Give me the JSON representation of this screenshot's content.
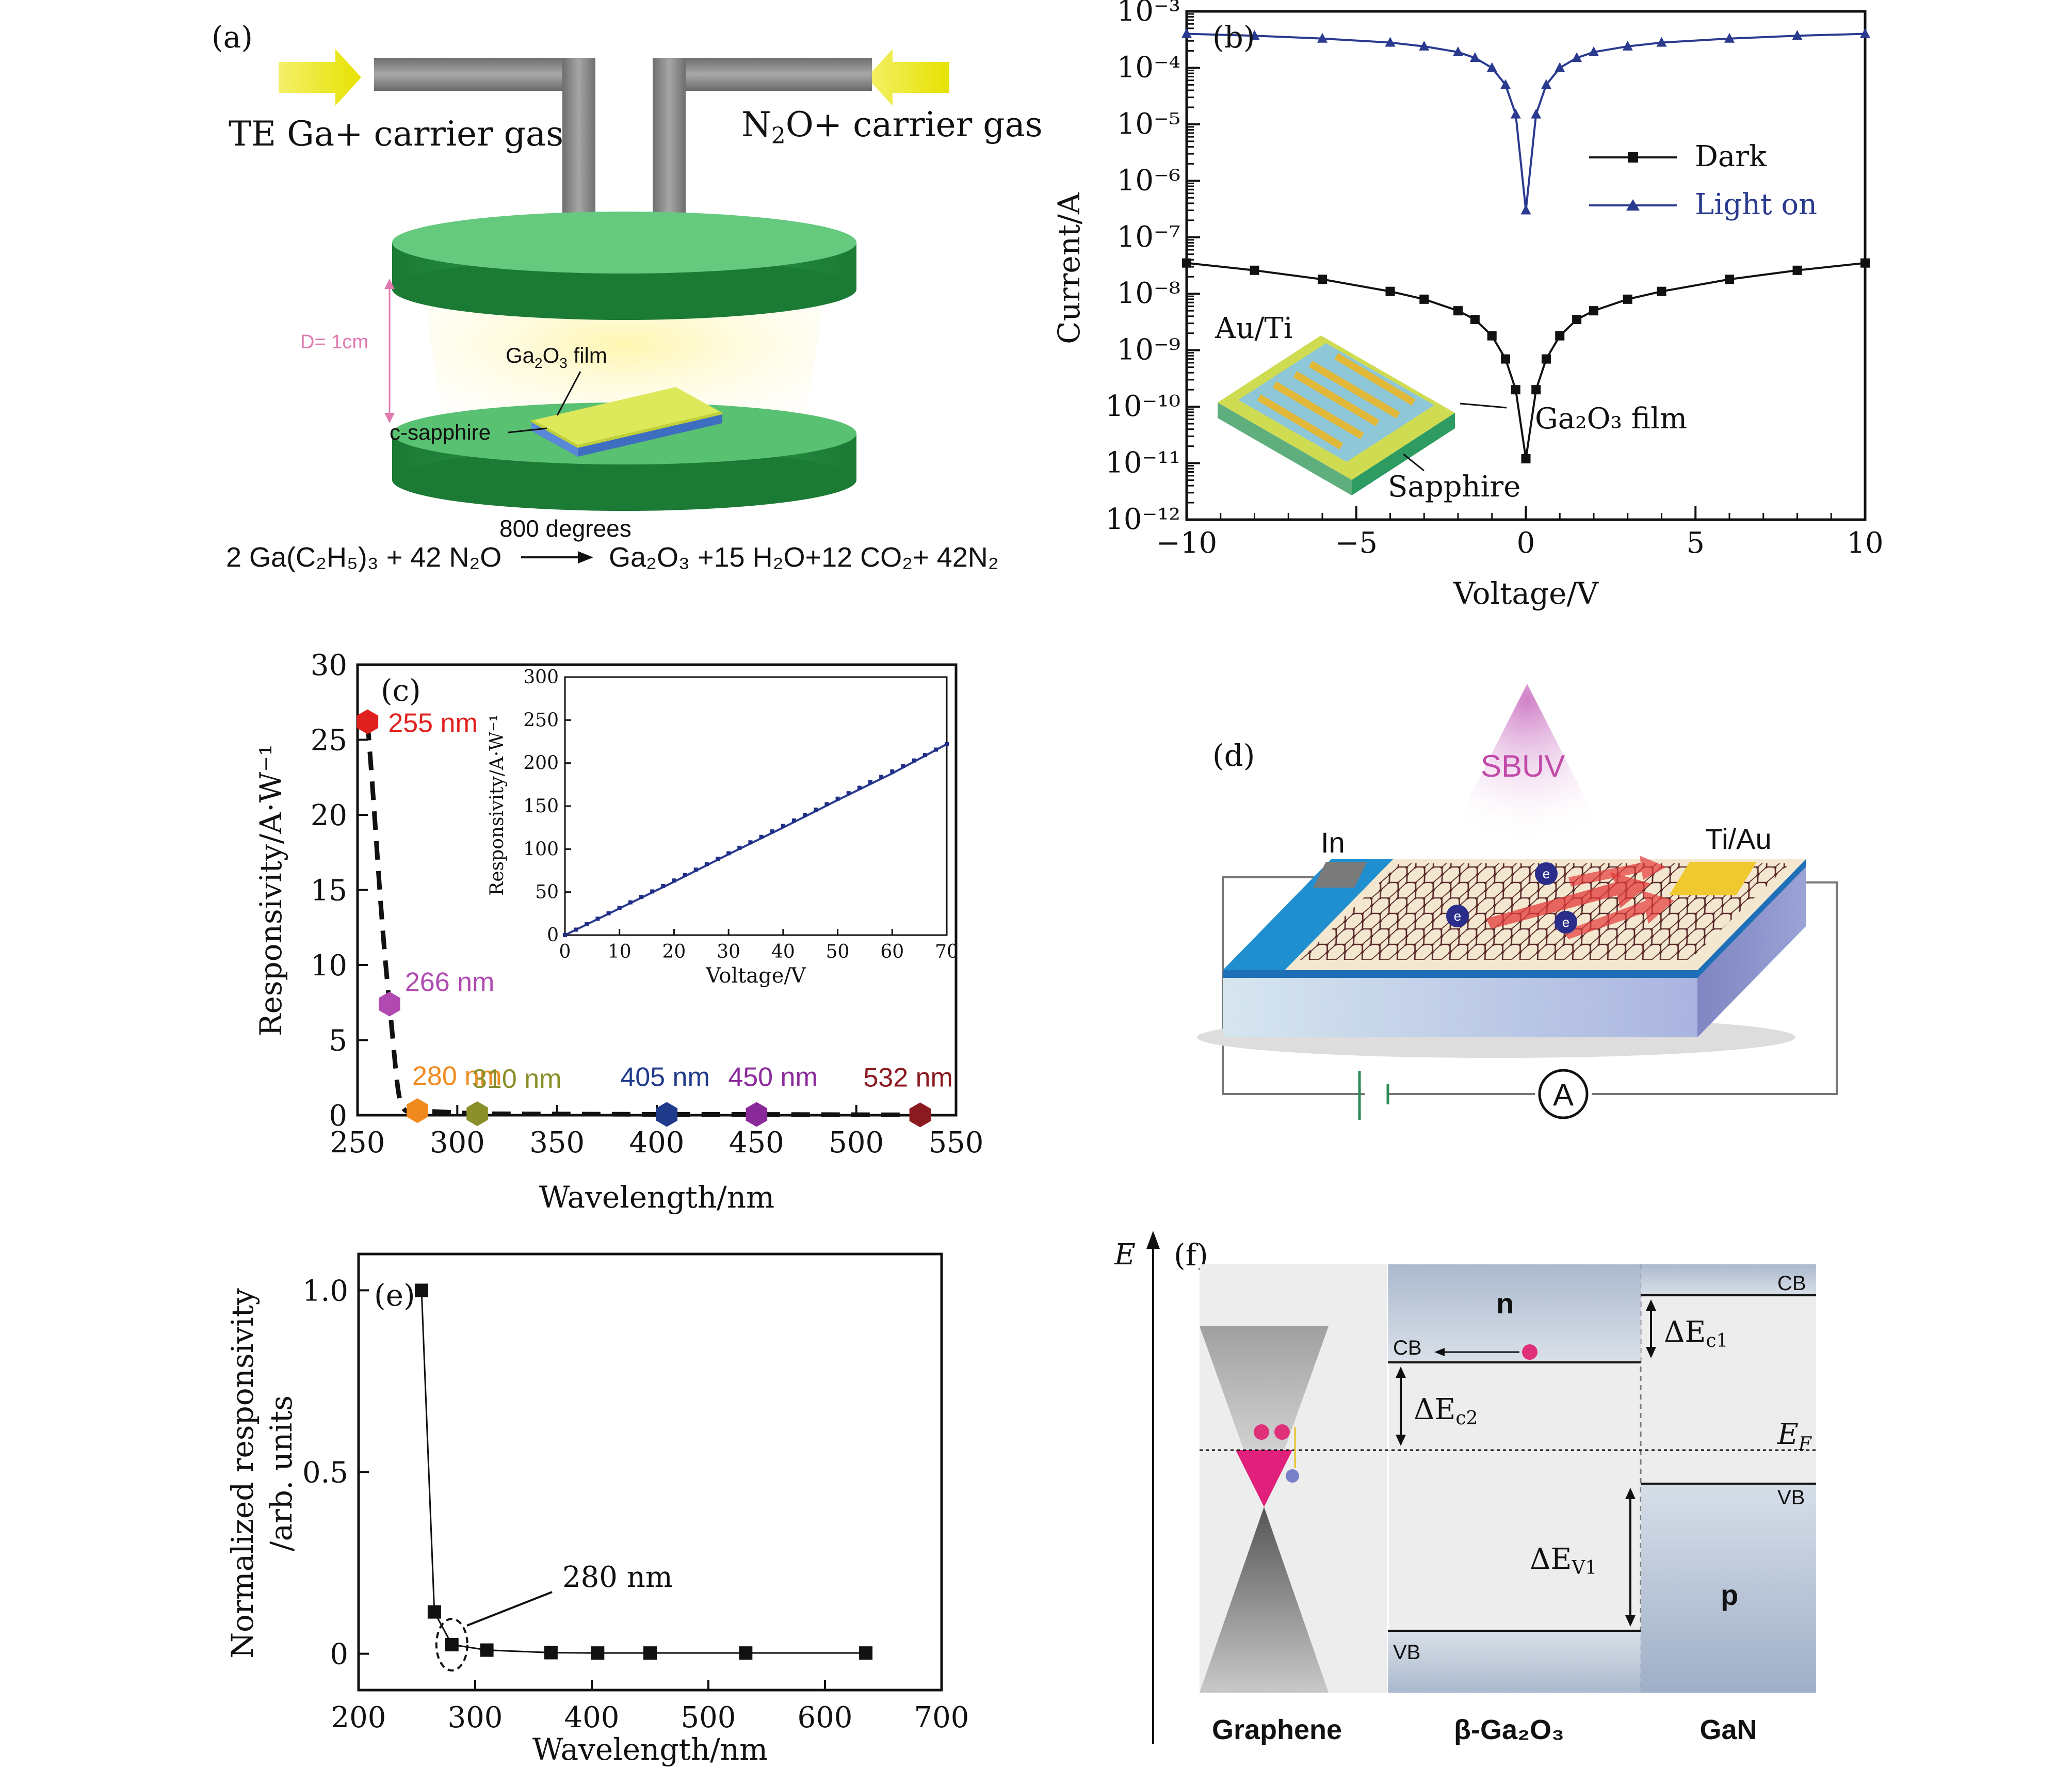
{
  "panels": {
    "a": {
      "label": "(a)",
      "left_gas": "TE Ga+ carrier gas",
      "right_gas_base": "N",
      "right_gas_sub": "2",
      "right_gas_rest": "O+ carrier gas",
      "distance": "D= 1cm",
      "film_label_base": "Ga",
      "film_label_sub1": "2",
      "film_label_mid": "O",
      "film_label_sub2": "3",
      "film_label_rest": " film",
      "substrate_label": "c-sapphire",
      "condition": "800 degrees",
      "reaction_left": "2 Ga(C₂H₅)₃ + 42 N₂O",
      "reaction_right": "Ga₂O₃ +15 H₂O+12 CO₂+ 42N₂"
    },
    "b": {
      "label": "(b)",
      "inset_top": "Au/Ti",
      "inset_film": "Ga₂O₃ film",
      "inset_substrate": "Sapphire"
    },
    "c": {
      "label": "(c)"
    },
    "d": {
      "label": "(d)",
      "light": "SBUV",
      "left_contact": "In",
      "right_contact": "Ti/Au",
      "meter": "A",
      "electron": "e"
    },
    "e": {
      "label": "(e)",
      "annotation": "280 nm"
    },
    "f": {
      "label": "(f)",
      "axis": "E",
      "fermi": "E",
      "fermi_sub": "F",
      "region_n": "n",
      "region_p": "p",
      "cb_left": "CB",
      "cb_right": "CB",
      "vb_left": "VB",
      "vb_right": "VB",
      "dEc1": "ΔE",
      "dEc1_sub": "c1",
      "dEc2": "ΔE",
      "dEc2_sub": "c2",
      "dEv1": "ΔE",
      "dEv1_sub": "V1",
      "materials": [
        "Graphene",
        "β-Ga₂O₃",
        "GaN"
      ]
    }
  },
  "chart_data": [
    {
      "id": "b",
      "type": "line",
      "xlabel": "Voltage/V",
      "ylabel": "Current/A",
      "xlim": [
        -10,
        10
      ],
      "ylim": [
        1e-12,
        0.001
      ],
      "yscale": "log",
      "xticks": [
        "−10",
        "−5",
        "0",
        "5",
        "10"
      ],
      "yticks": [
        "10⁻³",
        "10⁻⁴",
        "10⁻⁵",
        "10⁻⁶",
        "10⁻⁷",
        "10⁻⁸",
        "10⁻⁹",
        "10⁻¹⁰",
        "10⁻¹¹",
        "10⁻¹²"
      ],
      "legend_position": "top-right",
      "series": [
        {
          "name": "Dark",
          "color": "#111111",
          "marker": "square",
          "x": [
            -10,
            -8,
            -6,
            -4,
            -3,
            -2,
            -1.5,
            -1,
            -0.6,
            -0.3,
            0,
            0.3,
            0.6,
            1,
            1.5,
            2,
            3,
            4,
            6,
            8,
            10
          ],
          "y": [
            3.5e-08,
            2.6e-08,
            1.8e-08,
            1.1e-08,
            8e-09,
            5e-09,
            3.5e-09,
            1.8e-09,
            7e-10,
            2e-10,
            1.2e-11,
            2e-10,
            7e-10,
            1.8e-09,
            3.5e-09,
            5e-09,
            8e-09,
            1.1e-08,
            1.8e-08,
            2.6e-08,
            3.5e-08
          ]
        },
        {
          "name": "Light on",
          "color": "#2a3a8f",
          "marker": "triangle",
          "x": [
            -10,
            -8,
            -6,
            -4,
            -3,
            -2,
            -1.5,
            -1,
            -0.6,
            -0.3,
            0,
            0.3,
            0.6,
            1,
            1.5,
            2,
            3,
            4,
            6,
            8,
            10
          ],
          "y": [
            0.0004,
            0.00037,
            0.00033,
            0.00028,
            0.00024,
            0.00019,
            0.00015,
            0.0001,
            5e-05,
            1.5e-05,
            3e-07,
            1.5e-05,
            5e-05,
            0.0001,
            0.00015,
            0.00019,
            0.00024,
            0.00028,
            0.00033,
            0.00037,
            0.0004
          ]
        }
      ]
    },
    {
      "id": "c",
      "type": "scatter",
      "xlabel": "Wavelength/nm",
      "ylabel": "Responsivity/A·W⁻¹",
      "xlim": [
        250,
        550
      ],
      "ylim": [
        0,
        30
      ],
      "xticks": [
        "250",
        "300",
        "350",
        "400",
        "450",
        "500",
        "550"
      ],
      "yticks": [
        "0",
        "5",
        "10",
        "15",
        "20",
        "25",
        "30"
      ],
      "points": [
        {
          "x": 255,
          "y": 26.2,
          "label": "255 nm",
          "color": "#e0201e"
        },
        {
          "x": 266,
          "y": 7.4,
          "label": "266 nm",
          "color": "#b04ab0"
        },
        {
          "x": 280,
          "y": 0.3,
          "label": "280 nm",
          "color": "#f08a1e"
        },
        {
          "x": 310,
          "y": 0.1,
          "label": "310 nm",
          "color": "#8a8f2a"
        },
        {
          "x": 405,
          "y": 0.05,
          "label": "405 nm",
          "color": "#1f3a8a"
        },
        {
          "x": 450,
          "y": 0.05,
          "label": "450 nm",
          "color": "#8a2a9a"
        },
        {
          "x": 532,
          "y": 0.02,
          "label": "532 nm",
          "color": "#8a1a20"
        }
      ],
      "inset": {
        "type": "line",
        "xlabel": "Voltage/V",
        "ylabel": "Responsivity/A·W⁻¹",
        "xlim": [
          0,
          70
        ],
        "ylim": [
          0,
          300
        ],
        "xticks": [
          "0",
          "10",
          "20",
          "30",
          "40",
          "50",
          "60",
          "70"
        ],
        "yticks": [
          "0",
          "50",
          "100",
          "150",
          "200",
          "250",
          "300"
        ],
        "x": [
          0,
          10,
          20,
          30,
          40,
          50,
          60,
          70
        ],
        "y": [
          0,
          31,
          62,
          94,
          125,
          157,
          188,
          222
        ]
      }
    },
    {
      "id": "e",
      "type": "line",
      "xlabel": "Wavelength/nm",
      "ylabel_line1": "Normalized responsivity",
      "ylabel_line2": "/arb. units",
      "xlim": [
        200,
        700
      ],
      "ylim": [
        -0.1,
        1.1
      ],
      "xticks": [
        "200",
        "300",
        "400",
        "500",
        "600",
        "700"
      ],
      "yticks": [
        "0",
        "0.5",
        "1.0"
      ],
      "x": [
        254,
        265,
        280,
        310,
        365,
        405,
        450,
        532,
        635
      ],
      "y": [
        1.0,
        0.115,
        0.025,
        0.01,
        0.003,
        0.002,
        0.002,
        0.002,
        0.002
      ]
    }
  ]
}
